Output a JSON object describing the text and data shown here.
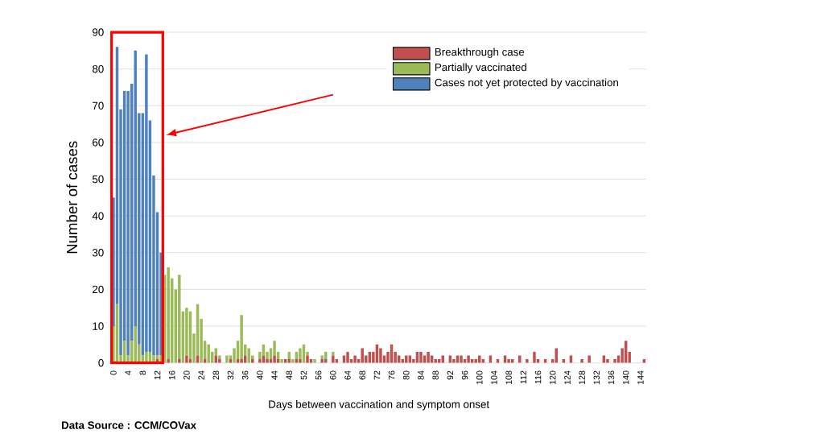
{
  "chart_data": {
    "type": "bar",
    "stacked": true,
    "ylabel": "Number of cases",
    "xlabel": "Days between vaccination and symptom onset",
    "annotations": [
      "Data Source : CCM/COVax"
    ],
    "categories": [
      "0",
      null,
      null,
      null,
      "4",
      null,
      null,
      null,
      "8",
      null,
      null,
      null,
      "12",
      null,
      null,
      null,
      "16",
      null,
      null,
      null,
      "20",
      null,
      null,
      null,
      "24",
      null,
      null,
      null,
      "28",
      null,
      null,
      null,
      "32",
      null,
      null,
      null,
      "36",
      null,
      null,
      null,
      "40",
      null,
      null,
      null,
      "44",
      null,
      null,
      null,
      "48",
      null,
      null,
      null,
      "52",
      null,
      null,
      null,
      "56",
      null,
      null,
      null,
      "60",
      null,
      null,
      null,
      "64",
      null,
      null,
      null,
      "68",
      null,
      null,
      null,
      "72",
      null,
      null,
      null,
      "76",
      null,
      null,
      null,
      "80",
      null,
      null,
      null,
      "84",
      null,
      null,
      null,
      "88",
      null,
      null,
      null,
      "92",
      null,
      null,
      null,
      "96",
      null,
      null,
      null,
      "100",
      null,
      null,
      null,
      "104",
      null,
      null,
      null,
      "108",
      null,
      null,
      null,
      "112",
      null,
      null,
      null,
      "116",
      null,
      null,
      null,
      "120",
      null,
      null,
      null,
      "124",
      null,
      null,
      null,
      "128",
      null,
      null,
      null,
      "132",
      null,
      null,
      null,
      "136",
      null,
      null,
      null,
      "140",
      null,
      null,
      null,
      "144",
      null
    ],
    "series": [
      {
        "name": "Breakthrough case",
        "color": "#c0504d",
        "values": [
          0,
          0,
          0,
          0,
          0,
          0,
          0,
          0,
          0,
          0,
          0,
          0,
          1,
          0,
          0,
          1,
          0,
          0,
          1,
          0,
          2,
          1,
          0,
          2,
          0,
          1,
          0,
          0,
          2,
          1,
          0,
          0,
          1,
          0,
          1,
          1,
          2,
          0,
          1,
          0,
          1,
          2,
          1,
          1,
          2,
          1,
          0,
          1,
          1,
          0,
          1,
          1,
          0,
          2,
          1,
          0,
          0,
          1,
          1,
          0,
          2,
          1,
          0,
          2,
          3,
          1,
          2,
          1,
          4,
          2,
          3,
          3,
          5,
          4,
          2,
          3,
          5,
          3,
          2,
          1,
          2,
          2,
          1,
          3,
          3,
          2,
          3,
          2,
          1,
          1,
          2,
          0,
          2,
          1,
          2,
          2,
          1,
          2,
          1,
          1,
          2,
          1,
          0,
          2,
          0,
          1,
          0,
          2,
          1,
          1,
          0,
          2,
          0,
          1,
          0,
          3,
          1,
          0,
          1,
          0,
          1,
          4,
          0,
          1,
          0,
          2,
          0,
          0,
          1,
          0,
          2,
          0,
          0,
          0,
          2,
          1,
          0,
          1,
          2,
          4,
          6,
          3,
          0,
          0,
          0,
          1
        ]
      },
      {
        "name": "Partially vaccinated",
        "color": "#9bbb59",
        "values": [
          10,
          16,
          2,
          6,
          2,
          6,
          10,
          5,
          2,
          3,
          3,
          2,
          1,
          2,
          24,
          25,
          23,
          20,
          23,
          14,
          13,
          13,
          8,
          14,
          12,
          5,
          5,
          3,
          2,
          1,
          0,
          2,
          1,
          4,
          5,
          12,
          3,
          4,
          1,
          0,
          2,
          3,
          2,
          3,
          4,
          2,
          1,
          0,
          2,
          1,
          2,
          3,
          5,
          1,
          0,
          1,
          0,
          1,
          2,
          0,
          1,
          0,
          0,
          0,
          0,
          0,
          0,
          0,
          0,
          0,
          0,
          0,
          0,
          0,
          0,
          0,
          0,
          0,
          0,
          0,
          0,
          0,
          0,
          0,
          0,
          0,
          0,
          0,
          0,
          0,
          0,
          0,
          0,
          0,
          0,
          0,
          0,
          0,
          0,
          0,
          0,
          0,
          0,
          0,
          0,
          0,
          0,
          0,
          0,
          0,
          0,
          0,
          0,
          0,
          0,
          0,
          0,
          0,
          0,
          0,
          0,
          0,
          0,
          0,
          0,
          0,
          0,
          0,
          0,
          0,
          0,
          0,
          0,
          0,
          0,
          0,
          0,
          0,
          0,
          0,
          0,
          0,
          0,
          0,
          0,
          0
        ]
      },
      {
        "name": "Cases not yet protected by vaccination",
        "color": "#4f81bd",
        "values": [
          35,
          70,
          67,
          68,
          72,
          70,
          75,
          63,
          66,
          81,
          63,
          49,
          39,
          28,
          0,
          0,
          0,
          0,
          0,
          0,
          0,
          0,
          0,
          0,
          0,
          0,
          0,
          0,
          0,
          0,
          0,
          0,
          0,
          0,
          0,
          0,
          0,
          0,
          0,
          0,
          0,
          0,
          0,
          0,
          0,
          0,
          0,
          0,
          0,
          0,
          0,
          0,
          0,
          0,
          0,
          0,
          0,
          0,
          0,
          0,
          0,
          0,
          0,
          0,
          0,
          0,
          0,
          0,
          0,
          0,
          0,
          0,
          0,
          0,
          0,
          0,
          0,
          0,
          0,
          0,
          0,
          0,
          0,
          0,
          0,
          0,
          0,
          0,
          0,
          0,
          0,
          0,
          0,
          0,
          0,
          0,
          0,
          0,
          0,
          0,
          0,
          0,
          0,
          0,
          0,
          0,
          0,
          0,
          0,
          0,
          0,
          0,
          0,
          0,
          0,
          0,
          0,
          0,
          0,
          0,
          0,
          0,
          0,
          0,
          0,
          0,
          0,
          0,
          0,
          0,
          0,
          0,
          0,
          0,
          0,
          0,
          0,
          0,
          0,
          0,
          0,
          0,
          0,
          0,
          0,
          0
        ]
      }
    ],
    "ylim": [
      0,
      90
    ],
    "yticks": [
      0,
      10,
      20,
      30,
      40,
      50,
      60,
      70,
      80,
      90
    ],
    "grid": "y",
    "legend": "top right"
  }
}
